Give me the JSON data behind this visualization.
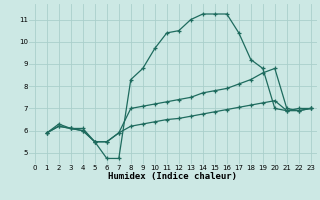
{
  "title": "",
  "xlabel": "Humidex (Indice chaleur)",
  "bg_color": "#cce8e4",
  "grid_color": "#aacfcb",
  "line_color": "#1e6b5e",
  "xlim": [
    -0.5,
    23.5
  ],
  "ylim": [
    4.5,
    11.7
  ],
  "xticks": [
    0,
    1,
    2,
    3,
    4,
    5,
    6,
    7,
    8,
    9,
    10,
    11,
    12,
    13,
    14,
    15,
    16,
    17,
    18,
    19,
    20,
    21,
    22,
    23
  ],
  "yticks": [
    5,
    6,
    7,
    8,
    9,
    10,
    11
  ],
  "curve1_x": [
    1,
    2,
    3,
    4,
    5,
    6,
    7,
    8,
    9,
    10,
    11,
    12,
    13,
    14,
    15,
    16,
    17,
    18,
    19,
    20,
    21,
    22,
    23
  ],
  "curve1_y": [
    5.9,
    6.3,
    6.1,
    6.1,
    5.5,
    4.75,
    4.75,
    8.3,
    8.8,
    9.7,
    10.4,
    10.5,
    11.0,
    11.25,
    11.25,
    11.25,
    10.4,
    9.2,
    8.8,
    7.0,
    6.9,
    7.0,
    7.0
  ],
  "curve2_x": [
    1,
    2,
    3,
    4,
    5,
    6,
    7,
    8,
    9,
    10,
    11,
    12,
    13,
    14,
    15,
    16,
    17,
    18,
    19,
    20,
    21,
    22,
    23
  ],
  "curve2_y": [
    5.9,
    6.2,
    6.1,
    6.0,
    5.5,
    5.5,
    5.9,
    7.0,
    7.1,
    7.2,
    7.3,
    7.4,
    7.5,
    7.7,
    7.8,
    7.9,
    8.1,
    8.3,
    8.6,
    8.8,
    7.0,
    6.9,
    7.0
  ],
  "curve3_x": [
    1,
    2,
    3,
    4,
    5,
    6,
    7,
    8,
    9,
    10,
    11,
    12,
    13,
    14,
    15,
    16,
    17,
    18,
    19,
    20,
    21,
    22,
    23
  ],
  "curve3_y": [
    5.9,
    6.2,
    6.1,
    6.0,
    5.5,
    5.5,
    5.9,
    6.2,
    6.3,
    6.4,
    6.5,
    6.55,
    6.65,
    6.75,
    6.85,
    6.95,
    7.05,
    7.15,
    7.25,
    7.35,
    6.9,
    6.9,
    7.0
  ]
}
